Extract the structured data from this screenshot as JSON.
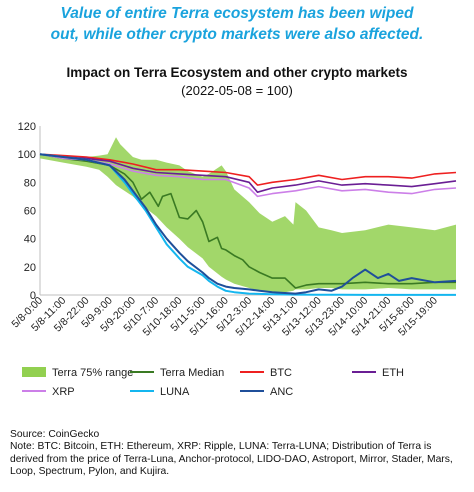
{
  "headline": {
    "line1": "Value of entire Terra ecosystem has been wiped",
    "line2": "out, while other crypto markets were also affected."
  },
  "chart_data": {
    "type": "line",
    "title": "Impact on Terra Ecosystem and other crypto markets",
    "subtitle": "(2022-05-08 = 100)",
    "ylim": [
      0,
      120
    ],
    "y_ticks": [
      0,
      20,
      40,
      60,
      80,
      100,
      120
    ],
    "x_tick_labels": [
      "5/8-0:00",
      "5/8-11:00",
      "5/8-22:00",
      "5/9-9:00",
      "5/9-20:00",
      "5/10-7:00",
      "5/10-18:00",
      "5/11-5:00",
      "5/11-16:00",
      "5/12-3:00",
      "5/12-14:00",
      "5/13-1:00",
      "5/13-12:00",
      "5/13-23:00",
      "5/14-10:00",
      "5/14-21:00",
      "5/15-8:00",
      "5/15-19:00"
    ],
    "x": [
      0,
      11,
      22,
      33,
      44,
      55,
      66,
      77,
      88,
      99,
      110,
      121,
      132,
      143,
      154,
      165,
      176,
      187
    ],
    "x_max": 197,
    "series": [
      {
        "name": "Terra 75% range",
        "kind": "band",
        "color": "#92d050",
        "x": [
          0,
          11,
          22,
          28,
          32,
          36,
          38,
          44,
          48,
          55,
          60,
          66,
          70,
          77,
          80,
          86,
          88,
          92,
          99,
          104,
          110,
          116,
          120,
          121,
          126,
          132,
          138,
          143,
          154,
          165,
          176,
          187,
          197
        ],
        "low": [
          97,
          94,
          91,
          89,
          84,
          78,
          76,
          70,
          64,
          56,
          48,
          40,
          34,
          26,
          20,
          13,
          11,
          8,
          5,
          3,
          2,
          2,
          3,
          4,
          4,
          5,
          5,
          4,
          4,
          5,
          4,
          4,
          4
        ],
        "high": [
          100,
          99,
          98,
          99,
          100,
          112,
          107,
          98,
          96,
          96,
          94,
          92,
          88,
          84,
          86,
          92,
          88,
          75,
          66,
          58,
          52,
          56,
          50,
          66,
          60,
          48,
          46,
          44,
          46,
          50,
          48,
          46,
          50
        ]
      },
      {
        "name": "Terra Median",
        "kind": "line",
        "color": "#3a7a23",
        "x": [
          0,
          11,
          22,
          33,
          40,
          44,
          48,
          52,
          56,
          58,
          62,
          66,
          70,
          74,
          77,
          80,
          84,
          86,
          88,
          92,
          96,
          99,
          104,
          110,
          116,
          121,
          126,
          132,
          143,
          154,
          165,
          176,
          187,
          197
        ],
        "y": [
          100,
          97,
          95,
          92,
          86,
          80,
          68,
          73,
          63,
          70,
          72,
          55,
          54,
          60,
          52,
          38,
          41,
          33,
          32,
          28,
          25,
          20,
          16,
          12,
          12,
          5,
          7,
          8,
          8,
          9,
          8,
          8,
          9,
          9
        ]
      },
      {
        "name": "BTC",
        "kind": "line",
        "color": "#ee2020",
        "x": [
          0,
          11,
          22,
          33,
          44,
          55,
          66,
          77,
          88,
          99,
          103,
          110,
          121,
          132,
          143,
          154,
          165,
          176,
          187,
          197
        ],
        "y": [
          100,
          99,
          98,
          96,
          93,
          89,
          89,
          88,
          87,
          84,
          78,
          80,
          82,
          85,
          82,
          84,
          84,
          83,
          86,
          87
        ]
      },
      {
        "name": "ETH",
        "kind": "line",
        "color": "#6a1e94",
        "x": [
          0,
          11,
          22,
          33,
          44,
          55,
          66,
          77,
          88,
          99,
          103,
          110,
          121,
          132,
          143,
          154,
          165,
          176,
          187,
          197
        ],
        "y": [
          100,
          98,
          97,
          95,
          90,
          87,
          86,
          85,
          84,
          80,
          73,
          76,
          78,
          81,
          78,
          79,
          78,
          77,
          79,
          81
        ]
      },
      {
        "name": "XRP",
        "kind": "line",
        "color": "#cc7fe8",
        "x": [
          0,
          11,
          22,
          33,
          44,
          55,
          66,
          77,
          88,
          99,
          103,
          110,
          121,
          132,
          143,
          154,
          165,
          176,
          187,
          197
        ],
        "y": [
          100,
          97,
          96,
          93,
          88,
          85,
          84,
          82,
          82,
          76,
          70,
          72,
          74,
          77,
          74,
          75,
          73,
          72,
          75,
          76
        ]
      },
      {
        "name": "LUNA",
        "kind": "line",
        "color": "#14b6ef",
        "x": [
          0,
          11,
          22,
          33,
          40,
          44,
          50,
          55,
          60,
          66,
          70,
          77,
          80,
          84,
          88,
          92,
          99,
          110,
          121,
          132,
          143,
          154,
          165,
          176,
          187,
          197
        ],
        "y": [
          100,
          98,
          96,
          92,
          80,
          72,
          60,
          48,
          36,
          26,
          20,
          14,
          10,
          6,
          3,
          2,
          1,
          0.5,
          0.3,
          0.2,
          0.2,
          0.1,
          0.1,
          0.1,
          0.1,
          0.1
        ]
      },
      {
        "name": "ANC",
        "kind": "line",
        "color": "#1f4f9a",
        "x": [
          0,
          11,
          22,
          33,
          40,
          44,
          50,
          55,
          60,
          66,
          70,
          77,
          80,
          84,
          88,
          92,
          99,
          104,
          110,
          121,
          126,
          132,
          138,
          143,
          148,
          154,
          160,
          165,
          170,
          176,
          187,
          197
        ],
        "y": [
          100,
          98,
          96,
          92,
          82,
          74,
          62,
          50,
          40,
          30,
          24,
          16,
          12,
          8,
          6,
          5,
          4,
          3,
          2,
          1,
          2,
          4,
          3,
          6,
          12,
          18,
          12,
          15,
          10,
          12,
          9,
          10
        ]
      }
    ]
  },
  "notes": {
    "source": "Source: CoinGecko",
    "note": "Note: BTC: Bitcoin, ETH: Ethereum, XRP: Ripple, LUNA: Terra-LUNA; Distribution of Terra is derived from the price of Terra-Luna, Anchor-protocol, LIDO-DAO, Astroport, Mirror, Stader, Mars, Loop, Spectrum, Pylon, and Kujira."
  },
  "colors": {
    "axis": "#bfbfbf"
  }
}
